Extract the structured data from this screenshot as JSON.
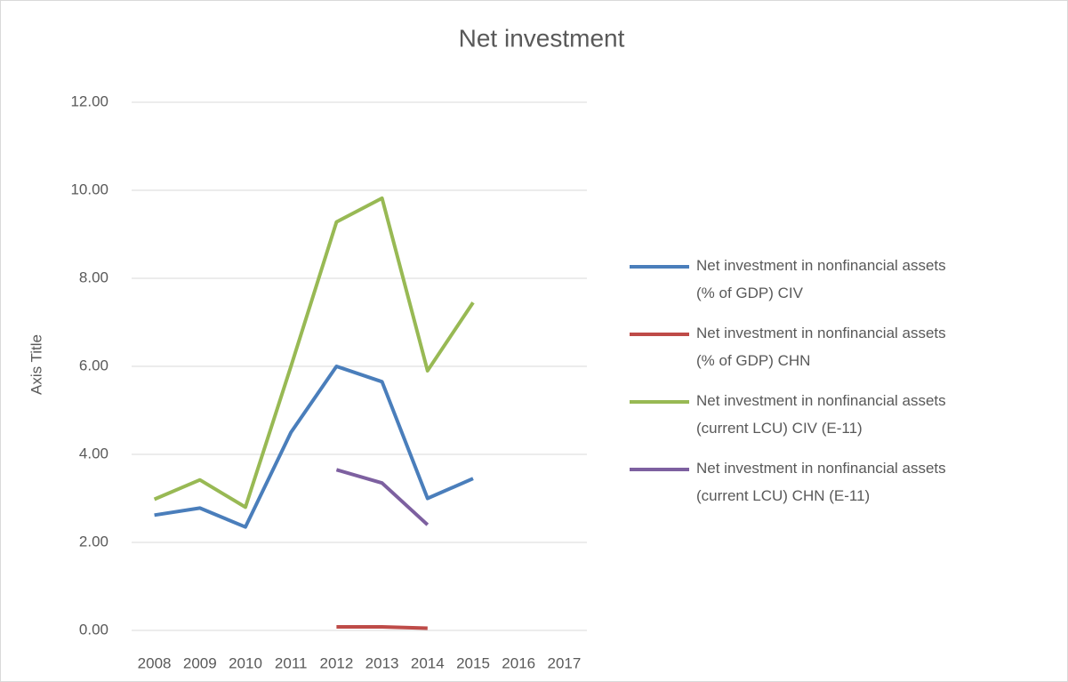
{
  "chart_data": {
    "type": "line",
    "title": "Net investment",
    "y_label": "Axis Title",
    "categories": [
      "2008",
      "2009",
      "2010",
      "2011",
      "2012",
      "2013",
      "2014",
      "2015",
      "2016",
      "2017"
    ],
    "series": [
      {
        "name": "Net investment in nonfinancial assets (% of GDP) CIV",
        "color": "#4a7ebb",
        "values": [
          2.62,
          2.78,
          2.35,
          4.5,
          6.0,
          5.65,
          3.0,
          3.45,
          null,
          null
        ]
      },
      {
        "name": "Net investment in nonfinancial assets (% of GDP) CHN",
        "color": "#be4b48",
        "values": [
          null,
          null,
          null,
          null,
          0.08,
          0.08,
          0.05,
          null,
          null,
          null
        ]
      },
      {
        "name": "Net investment in nonfinancial assets (current LCU) CIV (E-11)",
        "color": "#98b954",
        "values": [
          2.98,
          3.42,
          2.8,
          6.0,
          9.28,
          9.82,
          5.9,
          7.45,
          null,
          null
        ]
      },
      {
        "name": "Net investment in nonfinancial assets (current LCU) CHN (E-11)",
        "color": "#7d60a0",
        "values": [
          null,
          null,
          null,
          null,
          3.65,
          3.35,
          2.4,
          null,
          null,
          null
        ]
      }
    ],
    "ylim": [
      0,
      12
    ],
    "yticks": [
      {
        "value": 0,
        "label": "0.00"
      },
      {
        "value": 2,
        "label": "2.00"
      },
      {
        "value": 4,
        "label": "4.00"
      },
      {
        "value": 6,
        "label": "6.00"
      },
      {
        "value": 8,
        "label": "8.00"
      },
      {
        "value": 10,
        "label": "10.00"
      },
      {
        "value": 12,
        "label": "12.00"
      }
    ],
    "grid": true,
    "legend": "right"
  }
}
